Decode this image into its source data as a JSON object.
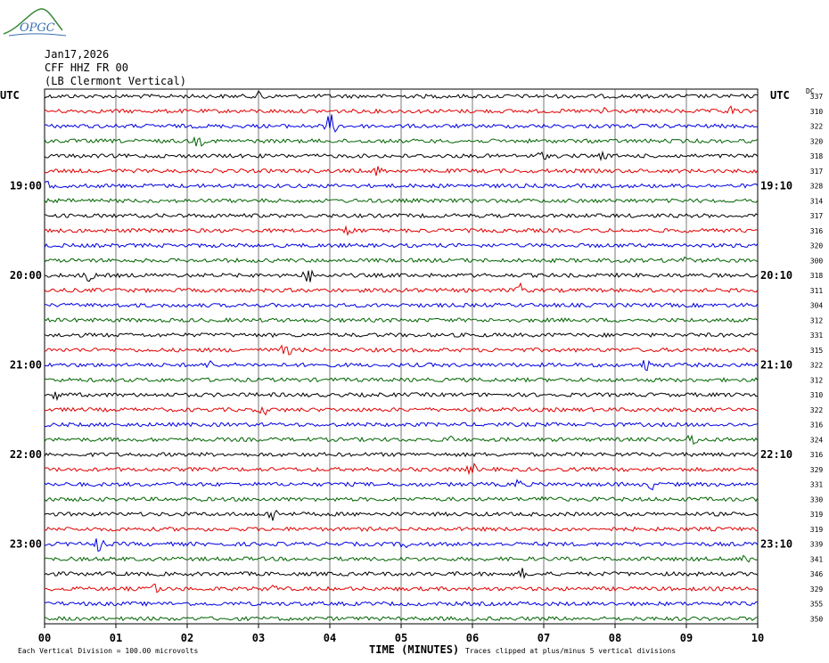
{
  "header": {
    "date": "Jan17,2026",
    "station": "CFF HHZ FR 00",
    "location": "(LB  Clermont Vertical)"
  },
  "logo_text": "OPGC",
  "chart_data": {
    "type": "line",
    "title": "",
    "left_axis_label": "UTC",
    "right_axis_label": "UTC",
    "right_column_header": "DC",
    "xlabel": "TIME (MINUTES)",
    "xlim": [
      0,
      10
    ],
    "x_ticks": [
      "00",
      "01",
      "02",
      "03",
      "04",
      "05",
      "06",
      "07",
      "08",
      "09",
      "10"
    ],
    "left_time_labels": [
      {
        "row": 6,
        "text": "19:00"
      },
      {
        "row": 12,
        "text": "20:00"
      },
      {
        "row": 18,
        "text": "21:00"
      },
      {
        "row": 24,
        "text": "22:00"
      },
      {
        "row": 30,
        "text": "23:00"
      }
    ],
    "right_time_labels": [
      {
        "row": 6,
        "text": "19:10"
      },
      {
        "row": 12,
        "text": "20:10"
      },
      {
        "row": 18,
        "text": "21:10"
      },
      {
        "row": 24,
        "text": "22:10"
      },
      {
        "row": 30,
        "text": "23:10"
      }
    ],
    "trace_colors": [
      "#000000",
      "#e00000",
      "#0000e0",
      "#006400"
    ],
    "dc_offsets": [
      337,
      310,
      322,
      320,
      318,
      317,
      328,
      314,
      317,
      316,
      320,
      300,
      318,
      311,
      304,
      312,
      331,
      315,
      322,
      312,
      310,
      322,
      316,
      324,
      316,
      329,
      331,
      330,
      319,
      319,
      339,
      341,
      346,
      329,
      355,
      350
    ],
    "grid": true,
    "footnote_left": "Each Vertical Division =  100.00 microvolts",
    "footnote_right": "Traces clipped at plus/minus 5 vertical divisions"
  }
}
